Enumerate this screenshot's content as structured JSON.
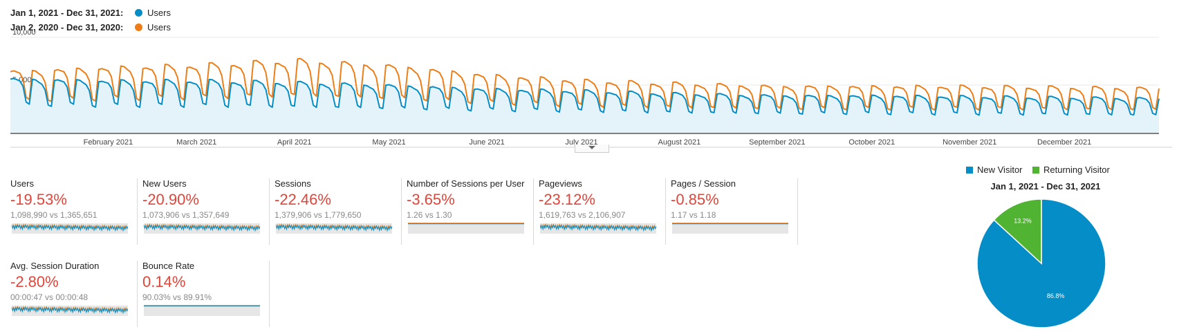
{
  "legend": [
    {
      "range": "Jan 1, 2021 - Dec 31, 2021:",
      "series": "Users",
      "color": "#058dc7"
    },
    {
      "range": "Jan 2, 2020 - Dec 31, 2020:",
      "series": "Users",
      "color": "#ed7e17"
    }
  ],
  "chart_data": [
    {
      "type": "line",
      "y_ticks": [
        "10,000",
        "5,000"
      ],
      "ylim": [
        0,
        10000
      ],
      "x_ticks": [
        "February 2021",
        "March 2021",
        "April 2021",
        "May 2021",
        "June 2021",
        "July 2021",
        "August 2021",
        "September 2021",
        "October 2021",
        "November 2021",
        "December 2021"
      ],
      "x_tick_days": [
        31,
        59,
        90,
        120,
        151,
        181,
        212,
        243,
        273,
        304,
        334
      ],
      "days": 365,
      "weekly_pattern": [
        1,
        1,
        0.97,
        0.94,
        0.84,
        0.55,
        0.52
      ],
      "series": [
        {
          "name": "Users",
          "color": "#058dc7",
          "fill": "#e4f2fa",
          "monthly_peak": [
            5800,
            5600,
            5600,
            5400,
            5100,
            4700,
            4500,
            4200,
            4000,
            4000,
            3900,
            3800,
            3700
          ]
        },
        {
          "name": "Users",
          "color": "#ed7e17",
          "monthly_peak": [
            6600,
            7000,
            7300,
            7800,
            7200,
            6200,
            5600,
            5300,
            5000,
            5000,
            5000,
            4900,
            4800
          ]
        }
      ]
    },
    {
      "type": "pie",
      "title": "Jan 1, 2021 - Dec 31, 2021",
      "slices": [
        {
          "label": "New Visitor",
          "value": 86.8,
          "display": "86.8%",
          "color": "#058dc7"
        },
        {
          "label": "Returning Visitor",
          "value": 13.2,
          "display": "13.2%",
          "color": "#50b432"
        }
      ]
    }
  ],
  "metrics": [
    {
      "label": "Users",
      "change": "-19.53%",
      "compare": "1,098,990 vs 1,365,651",
      "flat": false
    },
    {
      "label": "New Users",
      "change": "-20.90%",
      "compare": "1,073,906 vs 1,357,649",
      "flat": false
    },
    {
      "label": "Sessions",
      "change": "-22.46%",
      "compare": "1,379,906 vs 1,779,650",
      "flat": false
    },
    {
      "label": "Number of Sessions per User",
      "change": "-3.65%",
      "compare": "1.26 vs 1.30",
      "flat": true
    },
    {
      "label": "Pageviews",
      "change": "-23.12%",
      "compare": "1,619,763 vs 2,106,907",
      "flat": false
    },
    {
      "label": "Pages / Session",
      "change": "-0.85%",
      "compare": "1.17 vs 1.18",
      "flat": true
    },
    {
      "label": "Avg. Session Duration",
      "change": "-2.80%",
      "compare": "00:00:47 vs 00:00:48",
      "flat": false
    },
    {
      "label": "Bounce Rate",
      "change": "0.14%",
      "compare": "90.03% vs 89.91%",
      "flat": true
    }
  ]
}
